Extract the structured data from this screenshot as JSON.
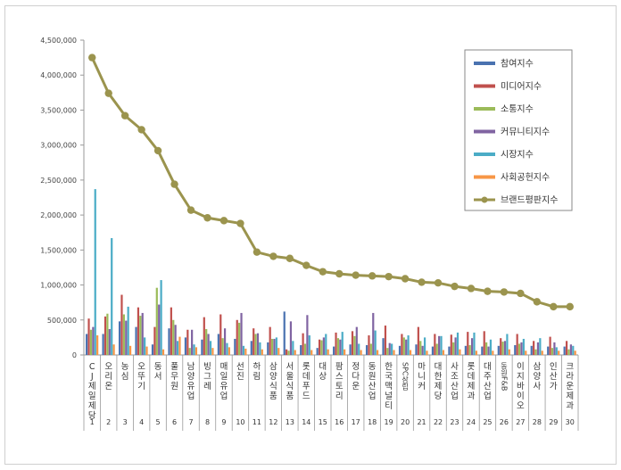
{
  "chart_data": {
    "type": "bar",
    "ylim": [
      0,
      4500000
    ],
    "yticks": [
      "0",
      "500,000",
      "1,000,000",
      "1,500,000",
      "2,000,000",
      "2,500,000",
      "3,000,000",
      "3,500,000",
      "4,000,000",
      "4,500,000"
    ],
    "ytick_values": [
      0,
      500000,
      1000000,
      1500000,
      2000000,
      2500000,
      3000000,
      3500000,
      4000000,
      4500000
    ],
    "grid": false,
    "legend_position": "top-right",
    "ranks": [
      "1",
      "2",
      "3",
      "4",
      "5",
      "6",
      "7",
      "8",
      "9",
      "10",
      "11",
      "12",
      "13",
      "14",
      "15",
      "16",
      "17",
      "18",
      "19",
      "20",
      "21",
      "22",
      "23",
      "24",
      "25",
      "26",
      "27",
      "28",
      "29",
      "30"
    ],
    "categories": [
      "CJ제일제당",
      "오리온",
      "농심",
      "오뚜기",
      "동서",
      "풀무원",
      "남양유업",
      "빙그레",
      "매일유업",
      "선진",
      "하림",
      "삼양식품",
      "서울식품",
      "롯데푸드",
      "대상",
      "팜스토리",
      "정다운",
      "동원산업",
      "한국맥널티",
      "SPC삼립",
      "마니커",
      "대한제당",
      "사조산업",
      "롯데제과",
      "대주산업",
      "동원F&B",
      "이지바이오",
      "삼양사",
      "인산가",
      "크라운제과"
    ],
    "series": [
      {
        "name": "참여지수",
        "color": "#4a72b0",
        "values": [
          300000,
          300000,
          480000,
          400000,
          150000,
          380000,
          250000,
          220000,
          300000,
          230000,
          200000,
          180000,
          620000,
          140000,
          100000,
          120000,
          150000,
          140000,
          240000,
          130000,
          150000,
          120000,
          120000,
          130000,
          120000,
          130000,
          140000,
          130000,
          120000,
          120000
        ]
      },
      {
        "name": "미디어지수",
        "color": "#c0504d",
        "values": [
          520000,
          550000,
          860000,
          680000,
          400000,
          680000,
          360000,
          540000,
          580000,
          500000,
          380000,
          400000,
          80000,
          310000,
          220000,
          320000,
          340000,
          280000,
          420000,
          300000,
          400000,
          300000,
          290000,
          330000,
          340000,
          240000,
          300000,
          200000,
          260000,
          200000
        ]
      },
      {
        "name": "소통지수",
        "color": "#9bbb59",
        "values": [
          360000,
          590000,
          580000,
          560000,
          960000,
          500000,
          100000,
          370000,
          240000,
          460000,
          300000,
          230000,
          60000,
          160000,
          210000,
          240000,
          270000,
          160000,
          100000,
          250000,
          200000,
          160000,
          180000,
          140000,
          180000,
          190000,
          160000,
          80000,
          100000,
          80000
        ]
      },
      {
        "name": "커뮤니티지수",
        "color": "#8064a2",
        "values": [
          400000,
          370000,
          490000,
          600000,
          720000,
          430000,
          360000,
          300000,
          380000,
          600000,
          310000,
          230000,
          480000,
          570000,
          250000,
          220000,
          400000,
          600000,
          170000,
          220000,
          130000,
          270000,
          250000,
          240000,
          120000,
          200000,
          180000,
          180000,
          180000,
          150000
        ]
      },
      {
        "name": "시장지수",
        "color": "#4bacc6",
        "values": [
          2370000,
          1670000,
          690000,
          250000,
          1070000,
          200000,
          150000,
          200000,
          170000,
          130000,
          180000,
          250000,
          200000,
          280000,
          300000,
          330000,
          160000,
          350000,
          160000,
          280000,
          250000,
          270000,
          320000,
          320000,
          220000,
          300000,
          230000,
          240000,
          110000,
          130000
        ]
      },
      {
        "name": "사회공헌지수",
        "color": "#f79646",
        "values": [
          280000,
          150000,
          130000,
          120000,
          80000,
          260000,
          110000,
          100000,
          110000,
          90000,
          80000,
          100000,
          70000,
          70000,
          80000,
          80000,
          70000,
          70000,
          70000,
          70000,
          60000,
          70000,
          80000,
          60000,
          60000,
          80000,
          60000,
          60000,
          60000,
          60000
        ]
      }
    ],
    "line_series": {
      "name": "브랜드평판지수",
      "color": "#9b944e",
      "values": [
        4250000,
        3740000,
        3420000,
        3220000,
        2920000,
        2440000,
        2070000,
        1960000,
        1920000,
        1880000,
        1470000,
        1410000,
        1380000,
        1280000,
        1190000,
        1160000,
        1140000,
        1130000,
        1120000,
        1090000,
        1040000,
        1030000,
        980000,
        950000,
        910000,
        900000,
        880000,
        760000,
        690000,
        690000
      ]
    }
  }
}
